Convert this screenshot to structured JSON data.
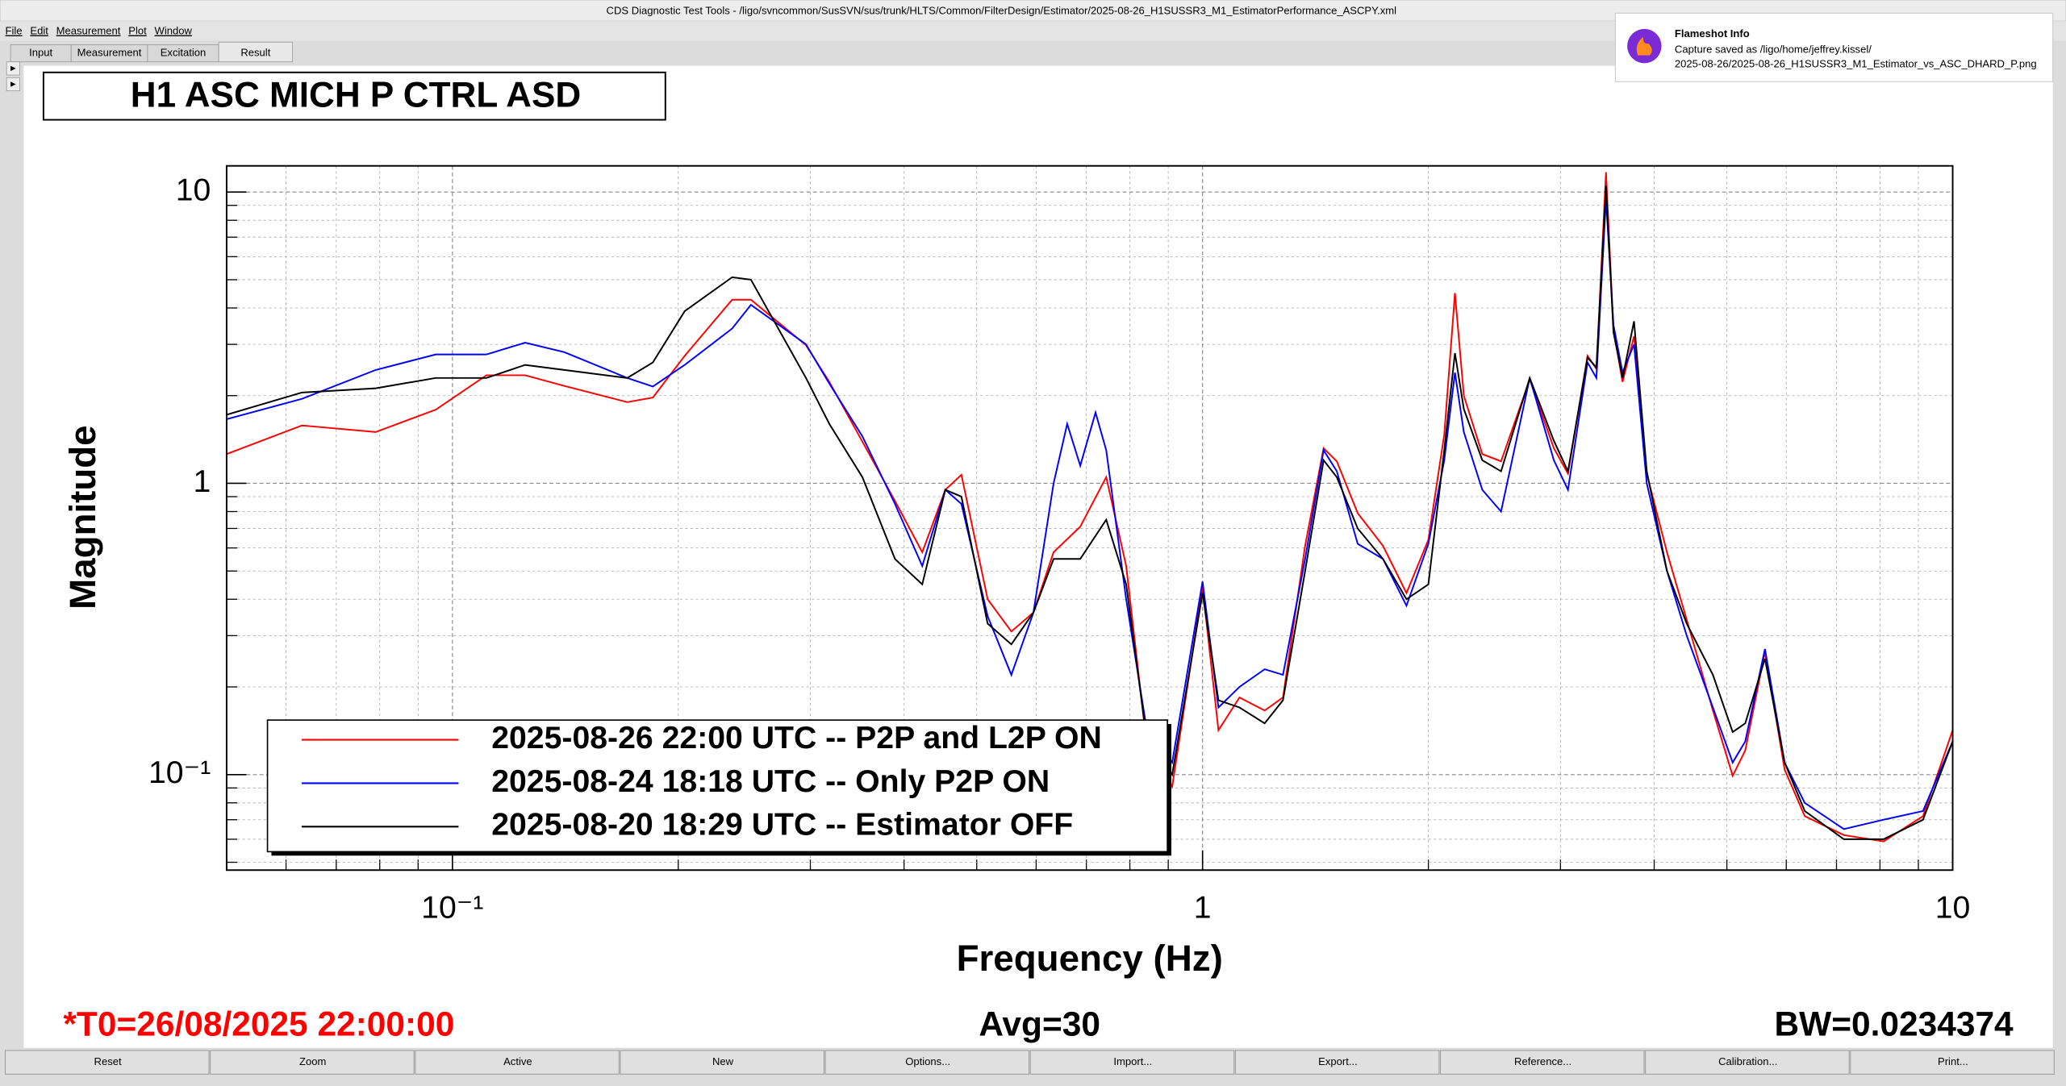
{
  "window": {
    "title": "CDS Diagnostic Test Tools - /ligo/svncommon/SusSVN/sus/trunk/HLTS/Common/FilterDesign/Estimator/2025-08-26_H1SUSSR3_M1_EstimatorPerformance_ASCPY.xml"
  },
  "menu": [
    "File",
    "Edit",
    "Measurement",
    "Plot",
    "Window"
  ],
  "tabs": [
    "Input",
    "Measurement",
    "Excitation",
    "Result"
  ],
  "notification": {
    "title": "Flameshot Info",
    "line1": "Capture saved as /ligo/home/jeffrey.kissel/",
    "line2": "2025-08-26/2025-08-26_H1SUSSR3_M1_Estimator_vs_ASC_DHARD_P.png"
  },
  "chart_data": {
    "type": "line",
    "title": "H1 ASC MICH P CTRL ASD",
    "xlabel": "Frequency (Hz)",
    "ylabel": "Magnitude",
    "xscale": "log",
    "yscale": "log",
    "grid": true,
    "xlim": [
      0.05,
      10
    ],
    "ylim": [
      0.047,
      12.3
    ],
    "xticks": [
      {
        "value": 0.1,
        "label": "10⁻¹"
      },
      1,
      10
    ],
    "yticks": [
      {
        "value": 0.1,
        "label": "10⁻¹"
      },
      1,
      10
    ],
    "minor_xticks": [
      0.06,
      0.07,
      0.08,
      0.09,
      0.2,
      0.3,
      0.4,
      0.5,
      0.6,
      0.7,
      0.8,
      0.9,
      2,
      3,
      4,
      5,
      6,
      7,
      8,
      9
    ],
    "minor_yticks": [
      0.05,
      0.06,
      0.07,
      0.08,
      0.09,
      0.2,
      0.3,
      0.4,
      0.5,
      0.6,
      0.7,
      0.8,
      0.9,
      2,
      3,
      4,
      5,
      6,
      7,
      8,
      9
    ],
    "series": [
      {
        "name": "2025-08-26 22:00 UTC -- P2P and L2P ON",
        "color": "#ff0000",
        "x": [
          0.05,
          0.063,
          0.079,
          0.095,
          0.111,
          0.125,
          0.141,
          0.171,
          0.185,
          0.204,
          0.236,
          0.25,
          0.296,
          0.318,
          0.352,
          0.389,
          0.423,
          0.454,
          0.477,
          0.517,
          0.556,
          0.595,
          0.633,
          0.687,
          0.744,
          0.791,
          0.84,
          0.911,
          1.0,
          1.05,
          1.12,
          1.21,
          1.28,
          1.37,
          1.45,
          1.51,
          1.61,
          1.74,
          1.87,
          2.0,
          2.1,
          2.17,
          2.23,
          2.36,
          2.5,
          2.73,
          2.94,
          3.07,
          3.26,
          3.35,
          3.45,
          3.53,
          3.63,
          3.76,
          3.91,
          4.16,
          4.42,
          4.79,
          5.09,
          5.29,
          5.62,
          5.97,
          6.35,
          7.16,
          8.09,
          9.13,
          10
        ],
        "values": [
          1.26,
          1.58,
          1.5,
          1.79,
          2.35,
          2.35,
          2.16,
          1.9,
          1.97,
          2.74,
          4.27,
          4.27,
          2.98,
          2.23,
          1.39,
          0.87,
          0.58,
          0.95,
          1.07,
          0.4,
          0.31,
          0.36,
          0.58,
          0.71,
          1.05,
          0.52,
          0.135,
          0.091,
          0.44,
          0.142,
          0.184,
          0.166,
          0.184,
          0.61,
          1.32,
          1.19,
          0.79,
          0.61,
          0.42,
          0.64,
          1.47,
          4.5,
          2.0,
          1.26,
          1.19,
          2.27,
          1.32,
          1.08,
          2.74,
          2.47,
          11.7,
          3.37,
          2.23,
          3.2,
          1.08,
          0.58,
          0.34,
          0.166,
          0.099,
          0.121,
          0.264,
          0.104,
          0.072,
          0.062,
          0.059,
          0.072,
          0.142
        ]
      },
      {
        "name": "2025-08-24 18:18 UTC -- Only P2P ON",
        "color": "#0000ff",
        "x": [
          0.05,
          0.063,
          0.079,
          0.095,
          0.111,
          0.125,
          0.141,
          0.171,
          0.185,
          0.204,
          0.236,
          0.25,
          0.296,
          0.318,
          0.352,
          0.389,
          0.423,
          0.454,
          0.477,
          0.517,
          0.556,
          0.595,
          0.633,
          0.66,
          0.687,
          0.72,
          0.744,
          0.791,
          0.84,
          0.911,
          1.0,
          1.05,
          1.12,
          1.21,
          1.28,
          1.37,
          1.45,
          1.51,
          1.61,
          1.74,
          1.87,
          2.0,
          2.1,
          2.17,
          2.23,
          2.36,
          2.5,
          2.73,
          2.94,
          3.07,
          3.26,
          3.35,
          3.45,
          3.53,
          3.63,
          3.76,
          3.91,
          4.16,
          4.42,
          4.79,
          5.09,
          5.29,
          5.62,
          5.97,
          6.35,
          7.16,
          8.09,
          9.13,
          10
        ],
        "values": [
          1.66,
          1.95,
          2.45,
          2.77,
          2.77,
          3.04,
          2.82,
          2.3,
          2.15,
          2.55,
          3.4,
          4.1,
          3.0,
          2.2,
          1.45,
          0.85,
          0.52,
          0.95,
          0.85,
          0.35,
          0.22,
          0.36,
          1.0,
          1.6,
          1.15,
          1.75,
          1.3,
          0.4,
          0.15,
          0.11,
          0.46,
          0.17,
          0.2,
          0.23,
          0.22,
          0.55,
          1.3,
          1.1,
          0.62,
          0.55,
          0.38,
          0.62,
          1.2,
          2.4,
          1.5,
          0.95,
          0.8,
          2.3,
          1.2,
          0.95,
          2.6,
          2.3,
          9.5,
          3.5,
          2.4,
          3.0,
          1.0,
          0.5,
          0.3,
          0.17,
          0.11,
          0.13,
          0.27,
          0.11,
          0.08,
          0.065,
          0.07,
          0.075,
          0.13
        ]
      },
      {
        "name": "2025-08-20 18:29 UTC -- Estimator OFF",
        "color": "#000000",
        "x": [
          0.05,
          0.063,
          0.079,
          0.095,
          0.111,
          0.125,
          0.141,
          0.171,
          0.185,
          0.204,
          0.236,
          0.25,
          0.296,
          0.318,
          0.352,
          0.389,
          0.423,
          0.454,
          0.477,
          0.517,
          0.556,
          0.595,
          0.633,
          0.687,
          0.744,
          0.791,
          0.84,
          0.911,
          1.0,
          1.05,
          1.12,
          1.21,
          1.28,
          1.37,
          1.45,
          1.51,
          1.61,
          1.74,
          1.87,
          2.0,
          2.1,
          2.17,
          2.23,
          2.36,
          2.5,
          2.73,
          2.94,
          3.07,
          3.26,
          3.35,
          3.45,
          3.53,
          3.63,
          3.76,
          3.91,
          4.16,
          4.42,
          4.79,
          5.09,
          5.29,
          5.62,
          5.97,
          6.35,
          7.16,
          8.09,
          9.13,
          10
        ],
        "values": [
          1.72,
          2.05,
          2.12,
          2.3,
          2.3,
          2.55,
          2.45,
          2.3,
          2.6,
          3.9,
          5.1,
          5.0,
          2.3,
          1.6,
          1.05,
          0.55,
          0.45,
          0.95,
          0.9,
          0.33,
          0.28,
          0.36,
          0.55,
          0.55,
          0.75,
          0.45,
          0.14,
          0.1,
          0.42,
          0.18,
          0.17,
          0.15,
          0.18,
          0.5,
          1.2,
          1.05,
          0.7,
          0.55,
          0.4,
          0.45,
          1.3,
          2.8,
          1.8,
          1.2,
          1.1,
          2.3,
          1.4,
          1.1,
          2.7,
          2.5,
          10.5,
          3.3,
          2.3,
          3.6,
          1.1,
          0.5,
          0.33,
          0.22,
          0.14,
          0.15,
          0.25,
          0.11,
          0.075,
          0.06,
          0.06,
          0.07,
          0.13
        ]
      }
    ]
  },
  "footer": {
    "t0": "*T0=26/08/2025 22:00:00",
    "avg": "Avg=30",
    "bw": "BW=0.0234374"
  },
  "buttons": [
    "Reset",
    "Zoom",
    "Active",
    "New",
    "Options...",
    "Import...",
    "Export...",
    "Reference...",
    "Calibration...",
    "Print..."
  ]
}
